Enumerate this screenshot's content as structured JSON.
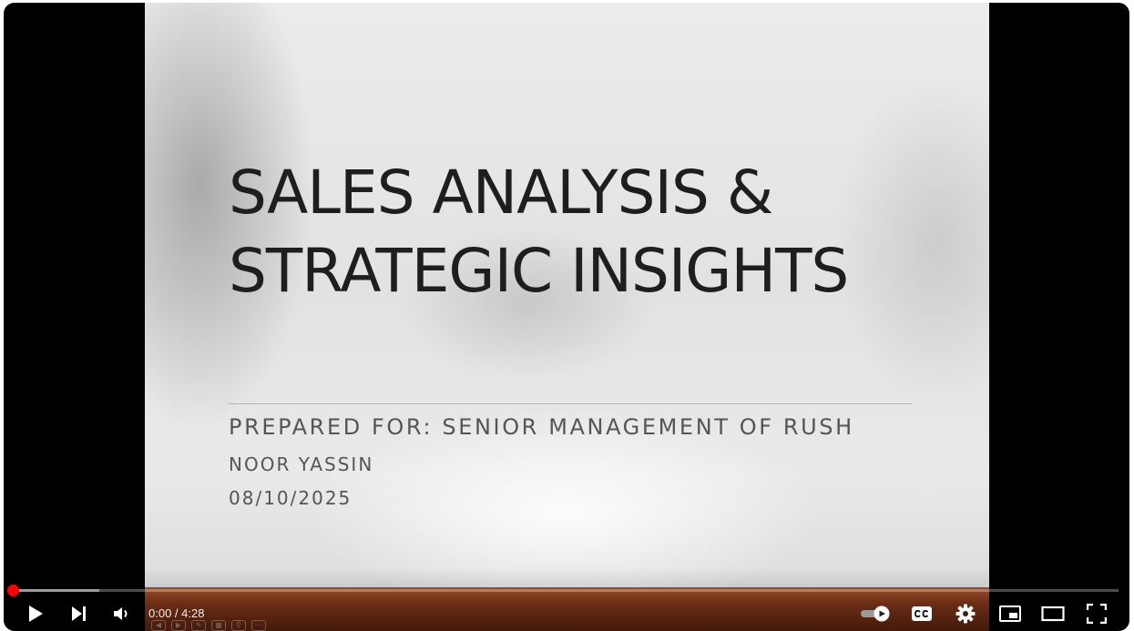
{
  "slide": {
    "title_line1": "SALES ANALYSIS &",
    "title_line2": "STRATEGIC INSIGHTS",
    "prepared_for": "PREPARED FOR: SENIOR MANAGEMENT OF RUSH",
    "author": "NOOR YASSIN",
    "date": "08/10/2025"
  },
  "player": {
    "current_time": "0:00",
    "separator": " / ",
    "duration": "4:28",
    "progress_played_fraction": 0.0,
    "progress_buffered_fraction": 0.078,
    "accent_color": "#ff0000",
    "controls": [
      {
        "name": "play-button",
        "icon": "play-icon"
      },
      {
        "name": "next-button",
        "icon": "skip-next-icon"
      },
      {
        "name": "volume-button",
        "icon": "volume-icon"
      },
      {
        "name": "autoplay-toggle",
        "icon": "autoplay-toggle-icon"
      },
      {
        "name": "captions-button",
        "icon": "cc-icon"
      },
      {
        "name": "settings-button",
        "icon": "gear-icon"
      },
      {
        "name": "miniplayer-button",
        "icon": "miniplayer-icon"
      },
      {
        "name": "theater-mode-button",
        "icon": "theater-icon"
      },
      {
        "name": "fullscreen-button",
        "icon": "fullscreen-icon"
      }
    ]
  }
}
